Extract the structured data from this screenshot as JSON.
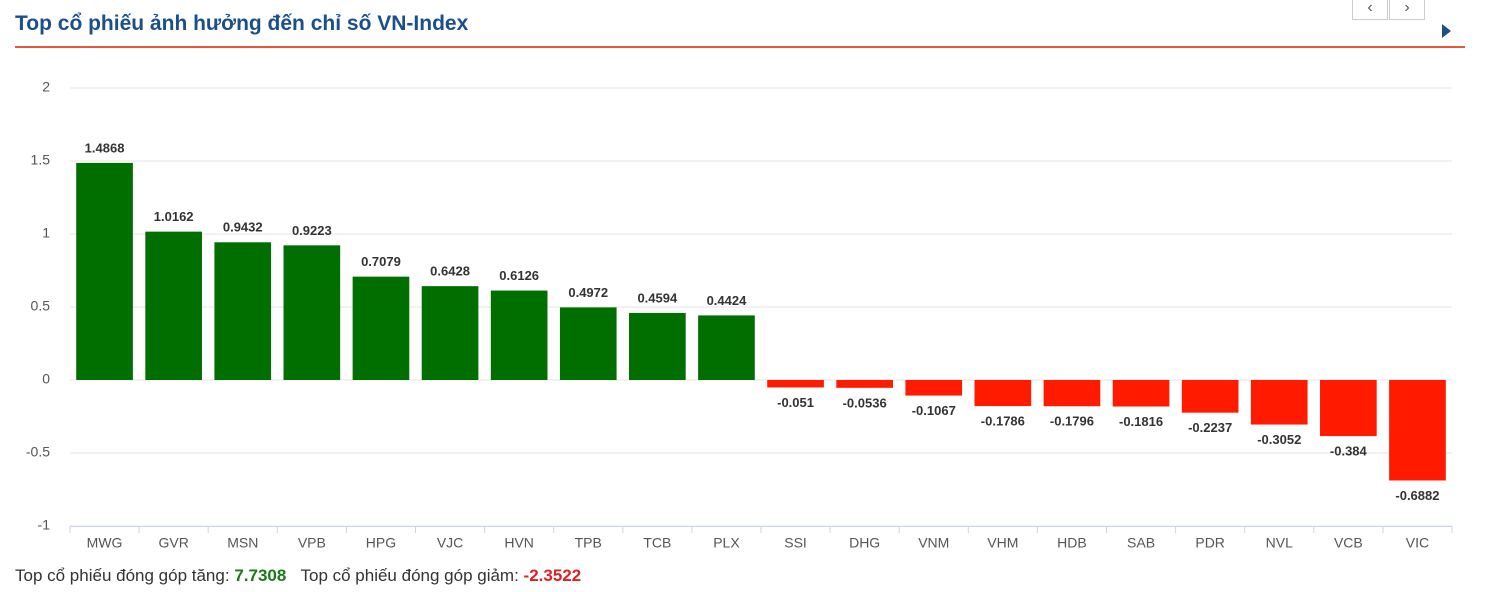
{
  "chart_data": {
    "type": "bar",
    "title": "Top cổ phiếu ảnh hưởng đến chỉ số VN-Index",
    "categories": [
      "MWG",
      "GVR",
      "MSN",
      "VPB",
      "HPG",
      "VJC",
      "HVN",
      "TPB",
      "TCB",
      "PLX",
      "SSI",
      "DHG",
      "VNM",
      "VHM",
      "HDB",
      "SAB",
      "PDR",
      "NVL",
      "VCB",
      "VIC"
    ],
    "values": [
      1.4868,
      1.0162,
      0.9432,
      0.9223,
      0.7079,
      0.6428,
      0.6126,
      0.4972,
      0.4594,
      0.4424,
      -0.051,
      -0.0536,
      -0.1067,
      -0.1786,
      -0.1796,
      -0.1816,
      -0.2237,
      -0.3052,
      -0.384,
      -0.6882
    ],
    "positive_color": "#006f00",
    "negative_color": "#ff1a00",
    "ylim": [
      -1,
      2
    ],
    "yticks": [
      -1,
      -0.5,
      0,
      0.5,
      1,
      1.5,
      2
    ],
    "grid": true
  },
  "summary": {
    "up_label": "Top cổ phiếu đóng góp tăng:",
    "up_value": "7.7308",
    "down_label": "Top cổ phiếu đóng góp giảm:",
    "down_value": "-2.3522"
  }
}
